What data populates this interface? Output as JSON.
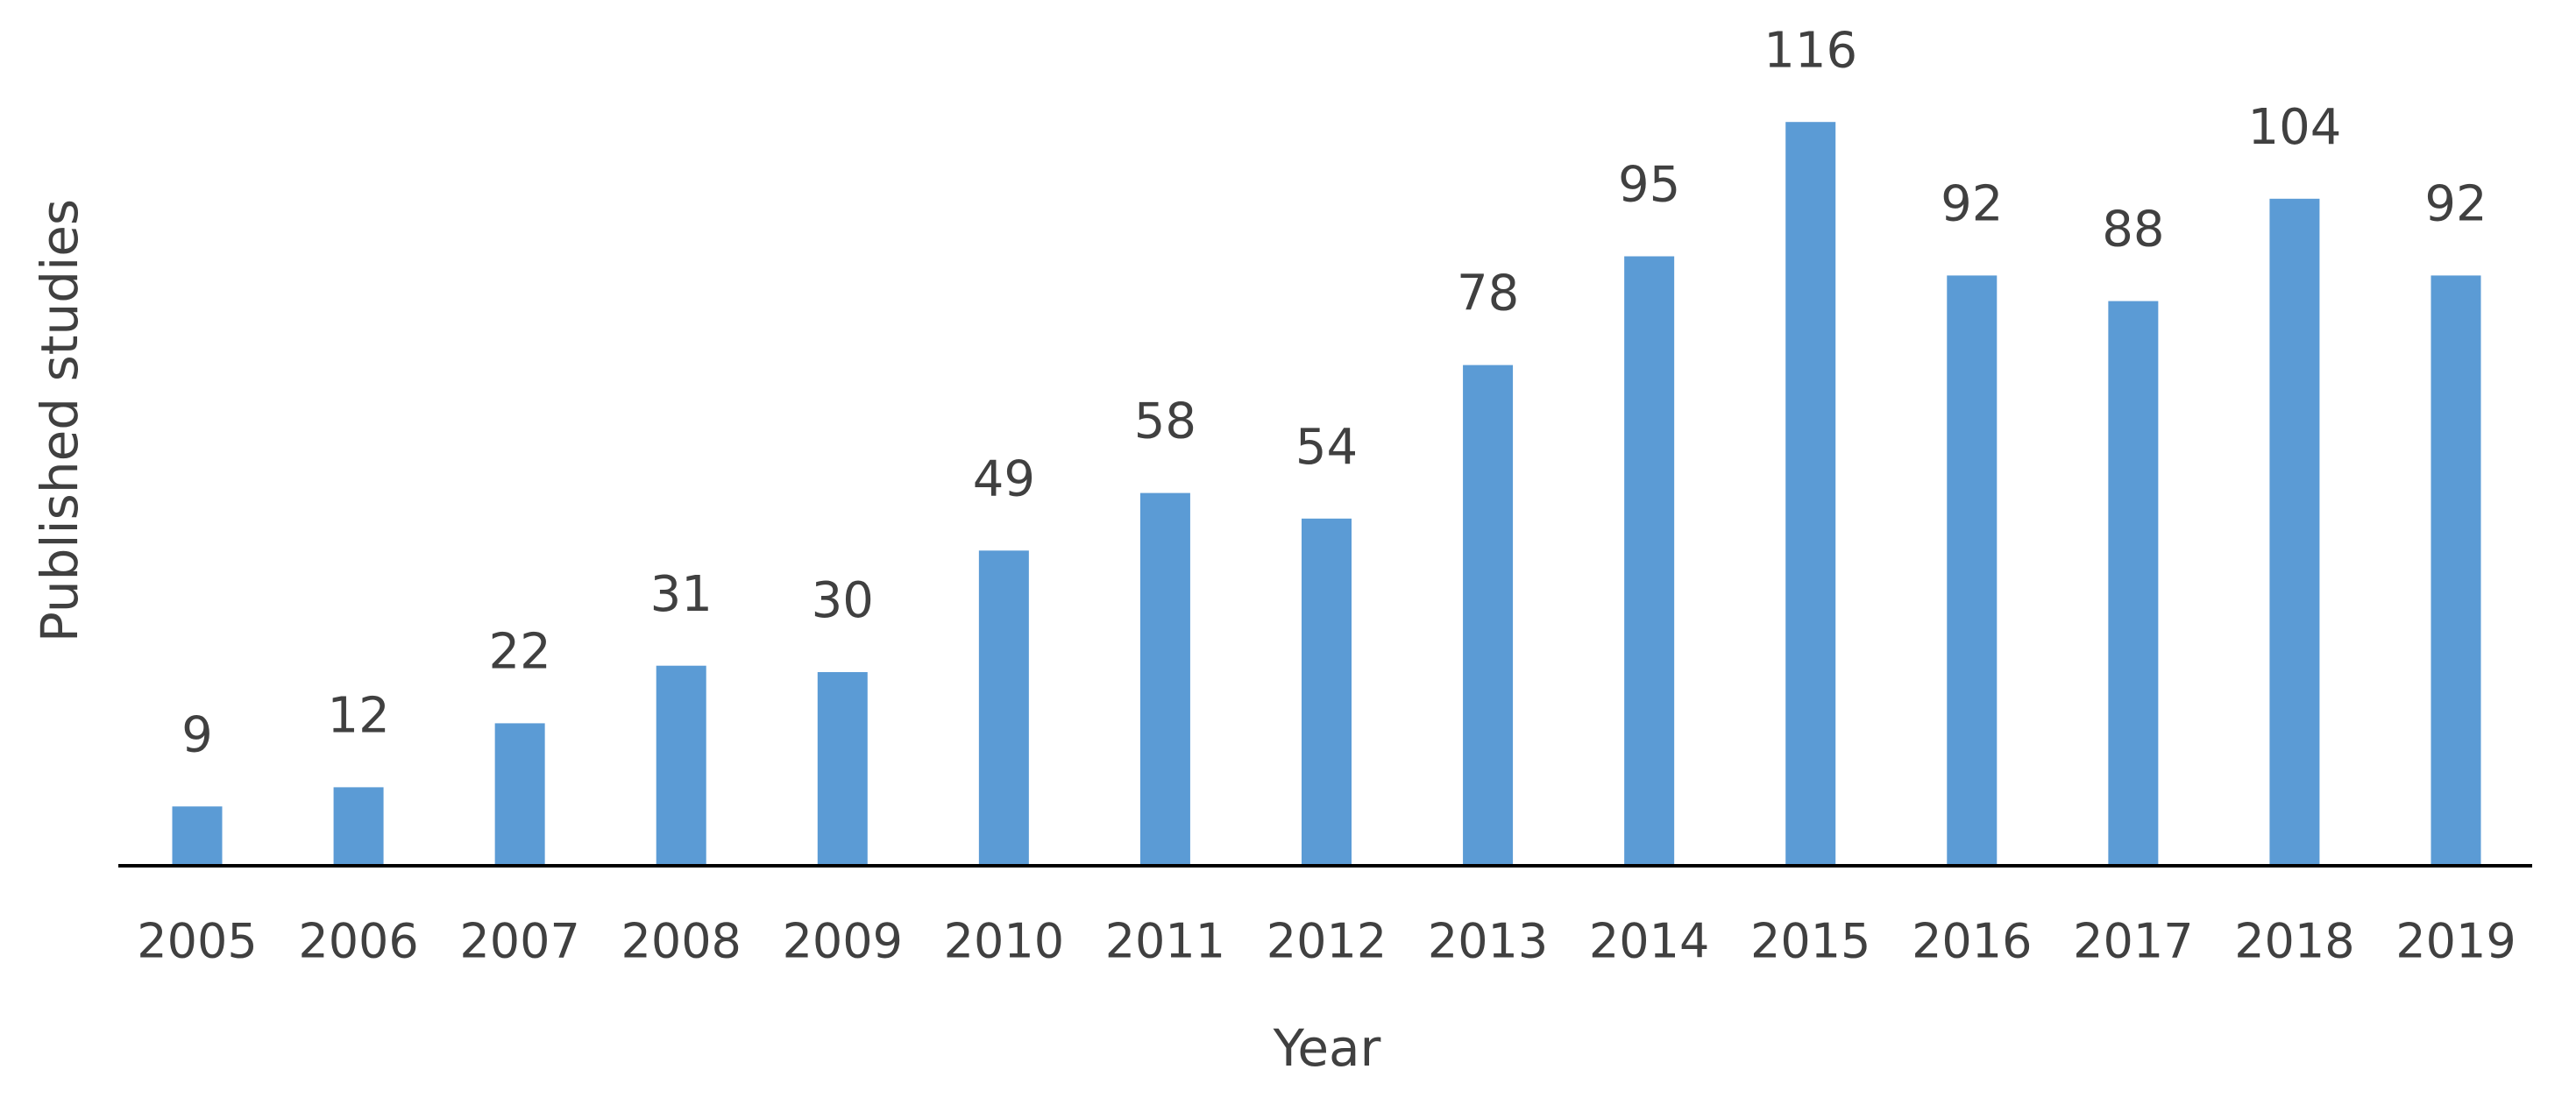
{
  "chart_data": {
    "type": "bar",
    "x_label": "Year",
    "y_label": "Published studies",
    "categories": [
      "2005",
      "2006",
      "2007",
      "2008",
      "2009",
      "2010",
      "2011",
      "2012",
      "2013",
      "2014",
      "2015",
      "2016",
      "2017",
      "2018",
      "2019"
    ],
    "values": [
      9,
      12,
      22,
      31,
      30,
      49,
      58,
      54,
      78,
      95,
      116,
      92,
      88,
      104,
      92
    ],
    "color": "#5b9bd5"
  }
}
